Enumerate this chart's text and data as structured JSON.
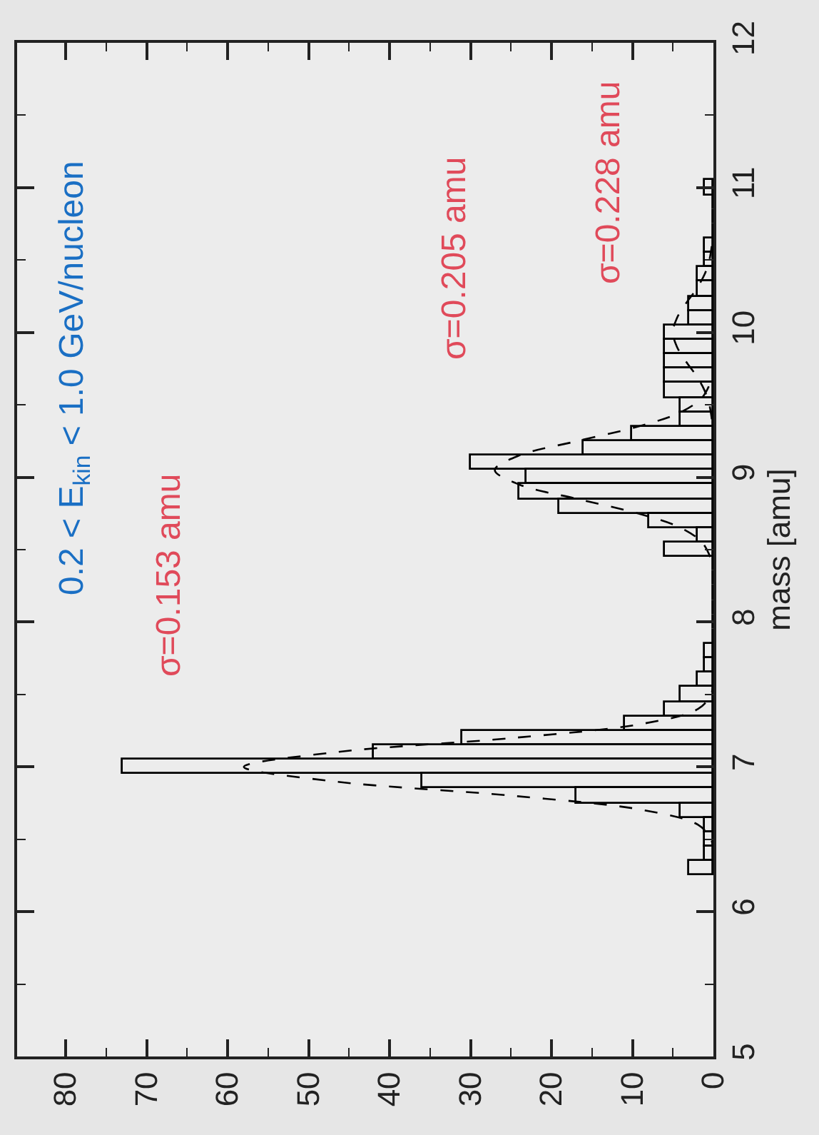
{
  "chart_data": {
    "type": "histogram",
    "orientation": "horizontal",
    "ylabel": "mass [amu]",
    "annotations": [
      "0.2 < E$_{kin}$ < 1.0 GeV/nucleon",
      "σ=0.153 amu",
      "σ=0.205 amu",
      "σ=0.228 amu"
    ],
    "bins": [
      6.25,
      6.35,
      6.45,
      6.55,
      6.65,
      6.75,
      6.85,
      6.95,
      7.05,
      7.15,
      7.25,
      7.35,
      7.45,
      7.55,
      7.65,
      7.75,
      7.85,
      7.95,
      8.05,
      8.15,
      8.25,
      8.35,
      8.45,
      8.55,
      8.65,
      8.75,
      8.85,
      8.95,
      9.05,
      9.15,
      9.25,
      9.35,
      9.45,
      9.55,
      9.65,
      9.75,
      9.85,
      9.95,
      10.05,
      10.15,
      10.25,
      10.35,
      10.45,
      10.55,
      10.65,
      10.75,
      10.85,
      10.95,
      11.05
    ],
    "values": [
      3,
      1,
      1,
      1,
      4,
      17,
      36,
      73,
      42,
      31,
      11,
      6,
      4,
      2,
      1,
      1,
      0,
      0,
      0,
      0,
      0,
      0,
      6,
      2,
      8,
      19,
      24,
      23,
      30,
      16,
      10,
      4,
      4,
      6,
      6,
      6,
      6,
      6,
      3,
      3,
      2,
      2,
      1,
      1,
      0,
      0,
      0,
      1
    ],
    "color": "#000000",
    "series": [
      {
        "type": "line",
        "color": "#000000",
        "x": [
          6.4,
          6.5,
          6.6,
          6.7,
          6.8,
          6.9,
          7.0,
          7.1,
          7.2,
          7.3,
          7.4,
          7.5,
          7.6
        ],
        "values": [
          0,
          0.3,
          1.9,
          8.5,
          24.7,
          46.9,
          58,
          46.9,
          24.7,
          8.5,
          1.9,
          0.3,
          0
        ]
      },
      {
        "type": "line",
        "color": "#000000",
        "x": [
          8.45,
          8.55,
          8.65,
          8.75,
          8.85,
          8.95,
          9.05,
          9.15,
          9.25,
          9.35,
          9.45,
          9.55,
          9.65
        ],
        "values": [
          0.4,
          1.4,
          4,
          9.3,
          16.8,
          24,
          27,
          24,
          16.8,
          9.3,
          4,
          1.4,
          0.4
        ]
      },
      {
        "type": "line",
        "color": "#000000",
        "x": [
          9.4,
          9.5,
          9.6,
          9.7,
          9.8,
          9.9,
          10.0,
          10.1,
          10.2,
          10.3,
          10.4,
          10.5,
          10.6
        ],
        "values": [
          0.2,
          0.5,
          1.1,
          2.1,
          3.4,
          4.5,
          5,
          4.5,
          3.4,
          2.1,
          1.1,
          0.5,
          0.2
        ]
      }
    ],
    "line_style": "dashed",
    "marker": "none",
    "xlim": [
      86,
      0
    ],
    "xticks": [
      0,
      {
        "value": 5,
        "label": null
      },
      10,
      {
        "value": 15,
        "label": null
      },
      20,
      {
        "value": 25,
        "label": null
      },
      30,
      {
        "value": 35,
        "label": null
      },
      40,
      {
        "value": 45,
        "label": null
      },
      50,
      {
        "value": 55,
        "label": null
      },
      60,
      {
        "value": 65,
        "label": null
      },
      70,
      {
        "value": 75,
        "label": null
      },
      80
    ],
    "ylim": [
      5,
      12
    ],
    "yticks": [
      5,
      {
        "value": 5.5,
        "label": null
      },
      6,
      {
        "value": 6.5,
        "label": null
      },
      7,
      {
        "value": 7.5,
        "label": null
      },
      8,
      {
        "value": 8.5,
        "label": null
      },
      9,
      {
        "value": 9.5,
        "label": null
      },
      10,
      {
        "value": 10.5,
        "label": null
      },
      11,
      {
        "value": 11.5,
        "label": null
      },
      12
    ],
    "grid": false
  }
}
